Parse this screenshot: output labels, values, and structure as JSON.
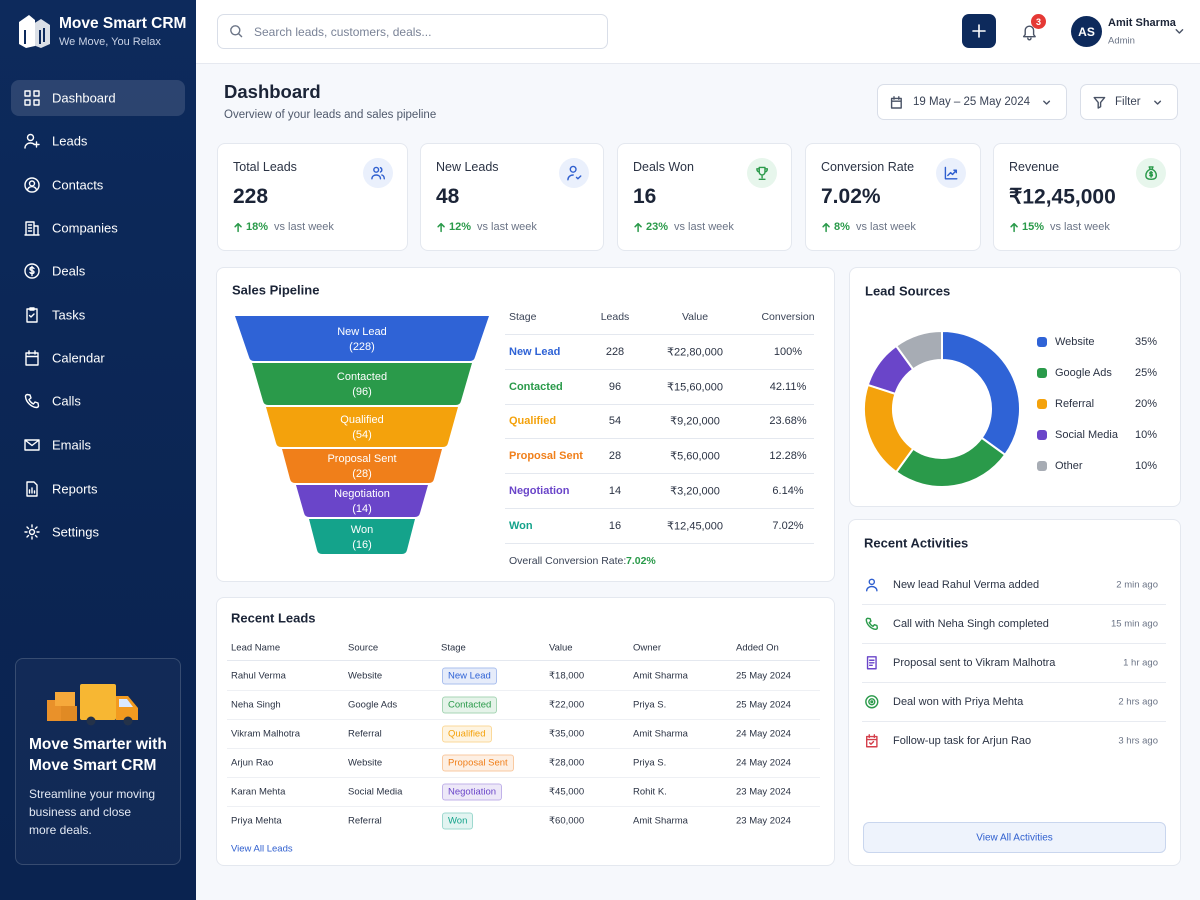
{
  "brand": {
    "name": "Move Smart CRM",
    "tagline": "We Move, You Relax"
  },
  "nav": [
    "Dashboard",
    "Leads",
    "Contacts",
    "Companies",
    "Deals",
    "Tasks",
    "Calendar",
    "Calls",
    "Emails",
    "Reports",
    "Settings"
  ],
  "promo": {
    "title_lines": [
      "Move Smarter with",
      "Move Smart CRM"
    ],
    "text_lines": [
      "Streamline your moving",
      "business and close",
      "more deals."
    ]
  },
  "search_placeholder": "Search leads, customers, deals...",
  "notifications": "3",
  "user": {
    "initials": "AS",
    "name": "Amit Sharma",
    "role": "Admin"
  },
  "header": {
    "title": "Dashboard",
    "subtitle": "Overview of your leads and sales pipeline",
    "date_range": "19 May – 25 May 2024",
    "filter": "Filter"
  },
  "kpis": [
    {
      "label": "Total Leads",
      "value": "228",
      "change": "18%",
      "note": "vs last week"
    },
    {
      "label": "New Leads",
      "value": "48",
      "change": "12%",
      "note": "vs last week"
    },
    {
      "label": "Deals Won",
      "value": "16",
      "change": "23%",
      "note": "vs last week"
    },
    {
      "label": "Conversion Rate",
      "value": "7.02%",
      "change": "8%",
      "note": "vs last week"
    },
    {
      "label": "Revenue",
      "value": "₹12,45,000",
      "change": "15%",
      "note": "vs last week"
    }
  ],
  "pipeline": {
    "title": "Sales Pipeline",
    "columns": [
      "Stage",
      "Leads",
      "Value",
      "Conversion"
    ],
    "rows": [
      {
        "stage": "New Lead",
        "leads": "228",
        "value": "₹22,80,000",
        "conversion": "100%"
      },
      {
        "stage": "Contacted",
        "leads": "96",
        "value": "₹15,60,000",
        "conversion": "42.11%"
      },
      {
        "stage": "Qualified",
        "leads": "54",
        "value": "₹9,20,000",
        "conversion": "23.68%"
      },
      {
        "stage": "Proposal Sent",
        "leads": "28",
        "value": "₹5,60,000",
        "conversion": "12.28%"
      },
      {
        "stage": "Negotiation",
        "leads": "14",
        "value": "₹3,20,000",
        "conversion": "6.14%"
      },
      {
        "stage": "Won",
        "leads": "16",
        "value": "₹12,45,000",
        "conversion": "7.02%"
      }
    ],
    "funnel_counts": [
      "(228)",
      "(96)",
      "(54)",
      "(28)",
      "(14)",
      "(16)"
    ],
    "colors": [
      "#2f63d6",
      "#2a9a4a",
      "#f4a20c",
      "#f07f1a",
      "#6a45c9",
      "#14a38b"
    ],
    "overall_label": "Overall Conversion Rate:",
    "overall_value": "7.02%"
  },
  "lead_sources": {
    "type": "pie",
    "title": "Lead Sources",
    "categories": [
      "Website",
      "Google Ads",
      "Referral",
      "Social Media",
      "Other"
    ],
    "values": [
      35,
      25,
      20,
      10,
      10
    ],
    "value_labels": [
      "35%",
      "25%",
      "20%",
      "10%",
      "10%"
    ],
    "colors": [
      "#2f63d6",
      "#2a9a4a",
      "#f4a20c",
      "#6a45c9",
      "#a7acb4"
    ]
  },
  "recent_leads": {
    "title": "Recent Leads",
    "columns": [
      "Lead Name",
      "Source",
      "Stage",
      "Value",
      "Owner",
      "Added On"
    ],
    "rows": [
      [
        "Rahul Verma",
        "Website",
        "New Lead",
        "₹18,000",
        "Amit Sharma",
        "25 May 2024"
      ],
      [
        "Neha Singh",
        "Google Ads",
        "Contacted",
        "₹22,000",
        "Priya S.",
        "25 May 2024"
      ],
      [
        "Vikram Malhotra",
        "Referral",
        "Qualified",
        "₹35,000",
        "Amit Sharma",
        "24 May 2024"
      ],
      [
        "Arjun Rao",
        "Website",
        "Proposal Sent",
        "₹28,000",
        "Priya S.",
        "24 May 2024"
      ],
      [
        "Karan Mehta",
        "Social Media",
        "Negotiation",
        "₹45,000",
        "Rohit K.",
        "23 May 2024"
      ],
      [
        "Priya Mehta",
        "Referral",
        "Won",
        "₹60,000",
        "Amit Sharma",
        "23 May 2024"
      ]
    ],
    "link": "View All Leads"
  },
  "activities": {
    "title": "Recent Activities",
    "items": [
      {
        "text": "New lead Rahul Verma added",
        "time": "2 min ago"
      },
      {
        "text": "Call with Neha Singh completed",
        "time": "15 min ago"
      },
      {
        "text": "Proposal sent to Vikram Malhotra",
        "time": "1 hr ago"
      },
      {
        "text": "Deal won with Priya Mehta",
        "time": "2 hrs ago"
      },
      {
        "text": "Follow-up task for Arjun Rao",
        "time": "3 hrs ago"
      }
    ],
    "button": "View All Activities"
  }
}
